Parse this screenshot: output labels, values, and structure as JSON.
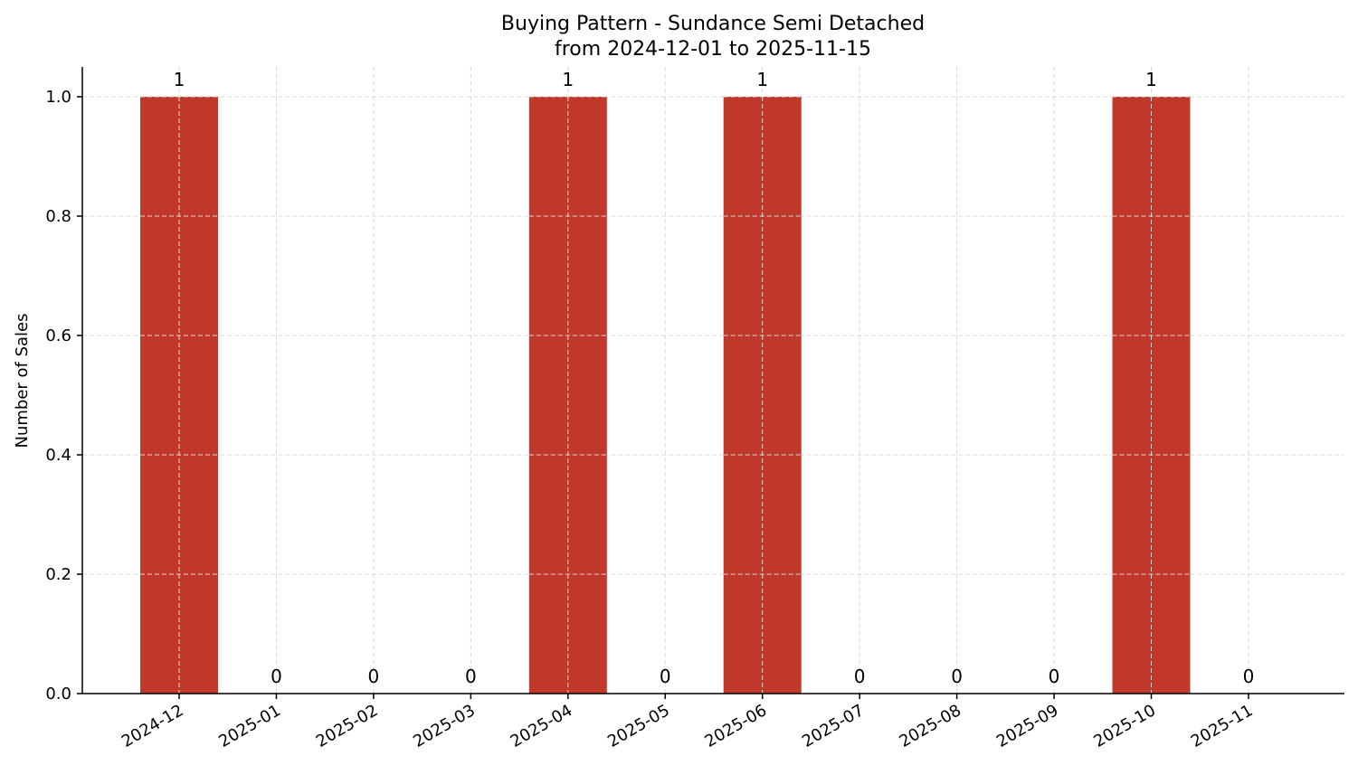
{
  "chart_data": {
    "type": "bar",
    "title": "Buying Pattern - Sundance Semi Detached",
    "subtitle": "from 2024-12-01 to 2025-11-15",
    "xlabel": "",
    "ylabel": "Number of Sales",
    "categories": [
      "2024-12",
      "2025-01",
      "2025-02",
      "2025-03",
      "2025-04",
      "2025-05",
      "2025-06",
      "2025-07",
      "2025-08",
      "2025-09",
      "2025-10",
      "2025-11"
    ],
    "values": [
      1,
      0,
      0,
      0,
      1,
      0,
      1,
      0,
      0,
      0,
      1,
      0
    ],
    "data_labels": [
      "1",
      "0",
      "0",
      "0",
      "1",
      "0",
      "1",
      "0",
      "0",
      "0",
      "1",
      "0"
    ],
    "ylim": [
      0,
      1.05
    ],
    "yticks": [
      0.0,
      0.2,
      0.4,
      0.6,
      0.8,
      1.0
    ],
    "ytick_labels": [
      "0.0",
      "0.2",
      "0.4",
      "0.6",
      "0.8",
      "1.0"
    ],
    "bar_color": "#c0392b",
    "grid": true,
    "legend": "none"
  }
}
